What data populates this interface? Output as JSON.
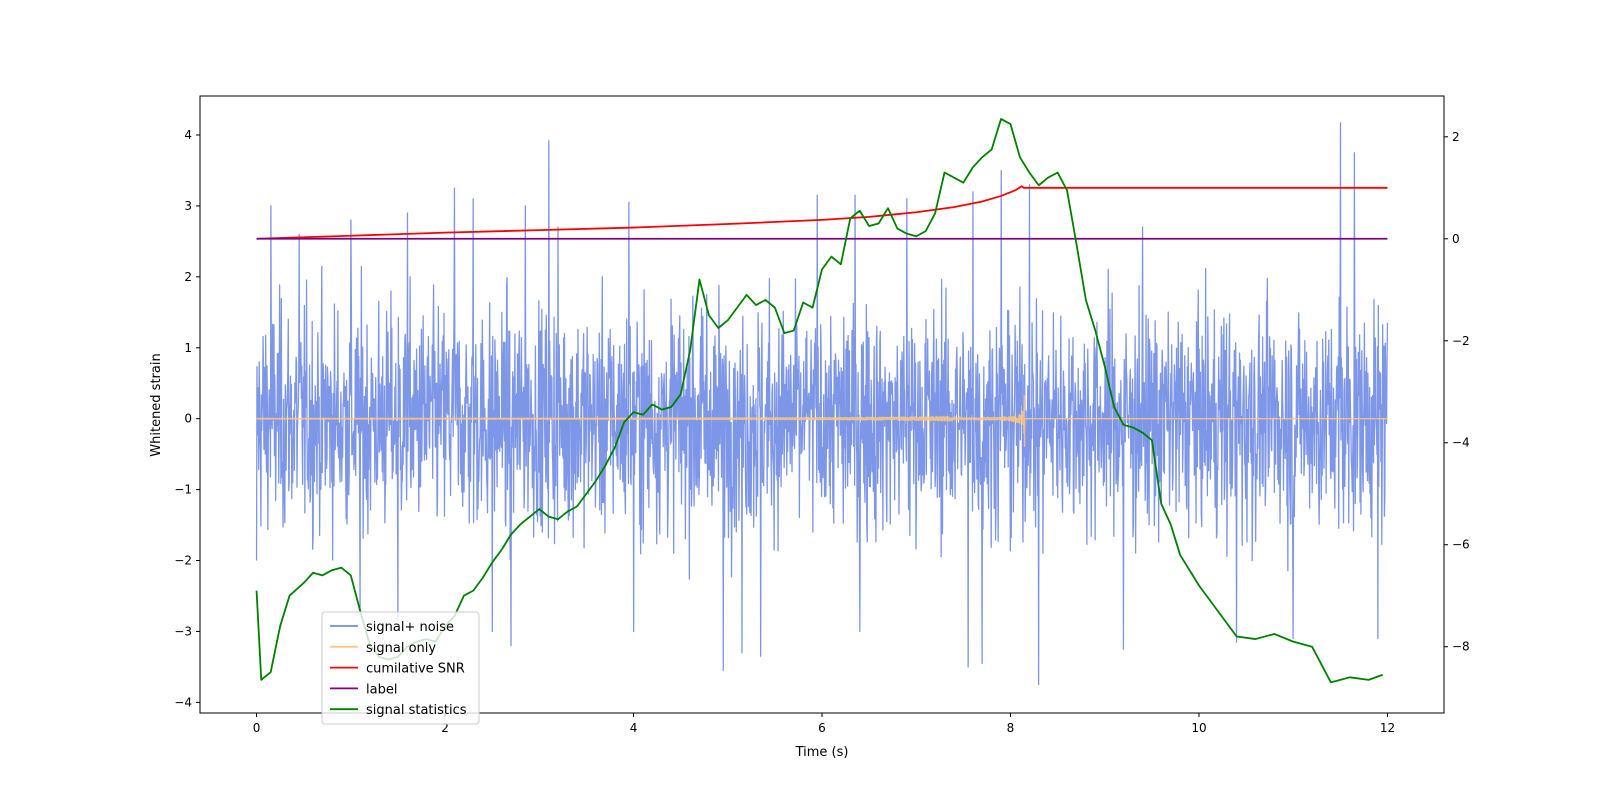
{
  "chart_data": {
    "type": "line",
    "title": "",
    "xlabel": "Time (s)",
    "ylabel": "Whitened strain",
    "y2label": "",
    "xlim": [
      -0.6,
      12.6
    ],
    "ylim": [
      -4.15,
      4.55
    ],
    "y2lim": [
      -9.3,
      2.8
    ],
    "xticks": [
      0,
      2,
      4,
      6,
      8,
      10,
      12
    ],
    "yticks": [
      -4,
      -3,
      -2,
      -1,
      0,
      1,
      2,
      3,
      4
    ],
    "y2ticks": [
      -8,
      -6,
      -4,
      -2,
      0,
      2
    ],
    "legend_position": "lower-left",
    "grid": false,
    "series": [
      {
        "name": "signal+ noise",
        "axis": "left",
        "color": "#6f8be6",
        "kind": "noise",
        "t_start": 0,
        "t_end": 12,
        "std": 0.78,
        "peaks": [
          [
            0.15,
            3.0
          ],
          [
            0.45,
            2.6
          ],
          [
            1.0,
            2.8
          ],
          [
            1.6,
            2.9
          ],
          [
            2.1,
            3.25
          ],
          [
            2.3,
            3.1
          ],
          [
            2.85,
            3.0
          ],
          [
            3.1,
            3.92
          ],
          [
            3.2,
            2.7
          ],
          [
            3.95,
            3.05
          ],
          [
            5.95,
            3.15
          ],
          [
            6.35,
            3.15
          ],
          [
            6.9,
            3.1
          ],
          [
            7.6,
            3.2
          ],
          [
            7.9,
            3.5
          ],
          [
            8.2,
            3.3
          ],
          [
            9.4,
            2.7
          ],
          [
            11.5,
            4.17
          ],
          [
            11.65,
            3.75
          ],
          [
            11.9,
            3.38
          ]
        ],
        "troughs": [
          [
            0.0,
            -2.0
          ],
          [
            1.1,
            -2.7
          ],
          [
            1.5,
            -2.85
          ],
          [
            2.5,
            -3.0
          ],
          [
            2.7,
            -3.2
          ],
          [
            4.0,
            -3.0
          ],
          [
            4.95,
            -3.55
          ],
          [
            5.15,
            -3.3
          ],
          [
            5.35,
            -3.35
          ],
          [
            6.4,
            -3.0
          ],
          [
            7.55,
            -3.5
          ],
          [
            7.7,
            -3.45
          ],
          [
            8.3,
            -3.75
          ],
          [
            9.2,
            -3.25
          ],
          [
            10.4,
            -3.15
          ],
          [
            11.0,
            -3.1
          ],
          [
            11.9,
            -3.1
          ]
        ]
      },
      {
        "name": "signal only",
        "axis": "left",
        "color": "#ffc87a",
        "kind": "chirp",
        "t_start": 0,
        "t_end": 12,
        "t_merge": 8.15,
        "amp_peak": 0.4
      },
      {
        "name": "cumilative SNR",
        "axis": "right",
        "color": "#ff0000",
        "x": [
          0,
          1,
          2,
          3,
          4,
          5,
          6,
          6.5,
          7,
          7.4,
          7.7,
          7.9,
          8.05,
          8.12,
          8.14,
          8.2,
          12
        ],
        "y": [
          0,
          0.06,
          0.12,
          0.17,
          0.22,
          0.29,
          0.37,
          0.43,
          0.52,
          0.62,
          0.73,
          0.84,
          0.95,
          1.03,
          1.0,
          1.0,
          1.0
        ]
      },
      {
        "name": "label",
        "axis": "right",
        "color": "#800080",
        "x": [
          0,
          12
        ],
        "y": [
          0,
          0
        ]
      },
      {
        "name": "signal statistics",
        "axis": "right",
        "color": "#008000",
        "x": [
          0.0,
          0.05,
          0.15,
          0.25,
          0.35,
          0.5,
          0.6,
          0.7,
          0.8,
          0.9,
          1.0,
          1.1,
          1.2,
          1.3,
          1.4,
          1.5,
          1.6,
          1.7,
          1.8,
          1.9,
          2.0,
          2.1,
          2.2,
          2.3,
          2.4,
          2.5,
          2.6,
          2.7,
          2.8,
          2.9,
          3.0,
          3.1,
          3.2,
          3.3,
          3.4,
          3.5,
          3.6,
          3.7,
          3.8,
          3.9,
          4.0,
          4.1,
          4.2,
          4.3,
          4.4,
          4.5,
          4.6,
          4.7,
          4.8,
          4.9,
          5.0,
          5.1,
          5.2,
          5.3,
          5.4,
          5.5,
          5.6,
          5.7,
          5.8,
          5.9,
          6.0,
          6.1,
          6.2,
          6.3,
          6.4,
          6.5,
          6.6,
          6.7,
          6.8,
          6.9,
          7.0,
          7.1,
          7.2,
          7.3,
          7.4,
          7.5,
          7.6,
          7.7,
          7.8,
          7.9,
          8.0,
          8.1,
          8.2,
          8.3,
          8.4,
          8.5,
          8.6,
          8.7,
          8.8,
          8.9,
          9.0,
          9.1,
          9.2,
          9.3,
          9.4,
          9.5,
          9.6,
          9.7,
          9.8,
          9.9,
          10.0,
          10.2,
          10.4,
          10.6,
          10.8,
          11.0,
          11.2,
          11.4,
          11.6,
          11.8,
          11.95
        ],
        "y": [
          -6.9,
          -8.65,
          -8.5,
          -7.6,
          -7.0,
          -6.75,
          -6.55,
          -6.6,
          -6.5,
          -6.45,
          -6.6,
          -7.3,
          -7.95,
          -8.2,
          -8.25,
          -8.2,
          -8.0,
          -7.9,
          -7.85,
          -7.9,
          -7.6,
          -7.4,
          -7.0,
          -6.9,
          -6.65,
          -6.35,
          -6.1,
          -5.8,
          -5.6,
          -5.45,
          -5.3,
          -5.45,
          -5.5,
          -5.35,
          -5.25,
          -5.0,
          -4.75,
          -4.45,
          -4.1,
          -3.6,
          -3.4,
          -3.45,
          -3.25,
          -3.35,
          -3.3,
          -3.05,
          -2.2,
          -0.8,
          -1.5,
          -1.75,
          -1.6,
          -1.35,
          -1.1,
          -1.3,
          -1.2,
          -1.35,
          -1.85,
          -1.8,
          -1.25,
          -1.35,
          -0.6,
          -0.35,
          -0.5,
          0.4,
          0.55,
          0.25,
          0.3,
          0.6,
          0.2,
          0.1,
          0.05,
          0.15,
          0.5,
          1.3,
          1.2,
          1.1,
          1.4,
          1.6,
          1.75,
          2.35,
          2.25,
          1.6,
          1.3,
          1.05,
          1.2,
          1.3,
          0.95,
          -0.1,
          -1.2,
          -1.8,
          -2.5,
          -3.3,
          -3.65,
          -3.7,
          -3.8,
          -3.95,
          -5.2,
          -5.6,
          -6.2,
          -6.5,
          -6.8,
          -7.3,
          -7.8,
          -7.85,
          -7.75,
          -7.9,
          -8.0,
          -8.7,
          -8.6,
          -8.65,
          -8.55
        ]
      }
    ]
  }
}
